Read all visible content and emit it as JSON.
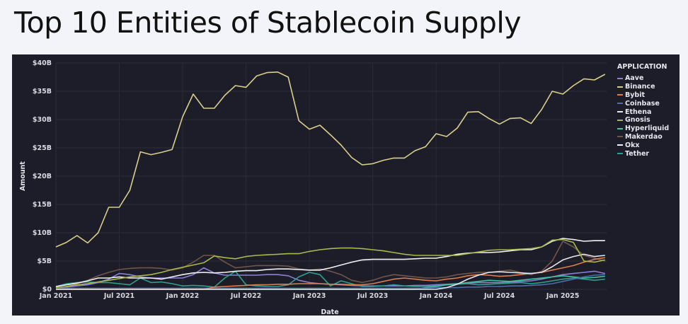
{
  "page_title": "Top 10 Entities of Stablecoin Supply",
  "chart_data": {
    "type": "line",
    "title": "Top 10 Entities of Stablecoin Supply",
    "xlabel": "Date",
    "ylabel": "Amount",
    "x_start": "Jan 2021",
    "x_interval": "month",
    "x_ticks": [
      "Jan 2021",
      "Jul 2021",
      "Jan 2022",
      "Jul 2022",
      "Jan 2023",
      "Jul 2023",
      "Jan 2024",
      "Jul 2024",
      "Jan 2025"
    ],
    "y_ticks": [
      "$0",
      "$5B",
      "$10B",
      "$15B",
      "$20B",
      "$25B",
      "$30B",
      "$35B",
      "$40B"
    ],
    "ylim": [
      0,
      40
    ],
    "y_unit": "B USD",
    "grid": true,
    "legend_title": "APPLICATION",
    "legend_position": "right",
    "series": [
      {
        "name": "Aave",
        "color": "#8a80d8",
        "values": [
          0.3,
          0.4,
          0.6,
          0.8,
          1.2,
          1.8,
          2.8,
          2.6,
          2.2,
          2,
          2,
          2,
          2,
          2.6,
          3.8,
          2.9,
          2.5,
          2.5,
          2.5,
          2.5,
          2.6,
          2.6,
          2.4,
          1.6,
          1.2,
          1,
          0.9,
          0.8,
          0.7,
          0.6,
          0.6,
          0.6,
          0.6,
          0.6,
          0.7,
          0.7,
          0.8,
          0.9,
          1,
          1.1,
          1.2,
          1.2,
          1.2,
          1.3,
          1.4,
          1.5,
          1.8,
          2.2,
          2.6,
          2.8,
          3,
          3.2,
          2.8
        ]
      },
      {
        "name": "Binance",
        "color": "#d8cf8a",
        "values": [
          7.5,
          8.3,
          9.5,
          8.2,
          10,
          14.5,
          14.5,
          17.5,
          24.3,
          23.8,
          24.2,
          24.7,
          30.5,
          34.5,
          32,
          32,
          34.3,
          36,
          35.7,
          37.7,
          38.3,
          38.4,
          37.5,
          29.8,
          28.3,
          29,
          27.3,
          25.5,
          23.3,
          22,
          22.2,
          22.8,
          23.2,
          23.2,
          24.5,
          25.2,
          27.5,
          27,
          28.5,
          31.3,
          31.4,
          30.2,
          29.2,
          30.2,
          30.3,
          29.3,
          31.8,
          35,
          34.5,
          36,
          37.2,
          37,
          38
        ]
      },
      {
        "name": "Bybit",
        "color": "#e07b4a",
        "values": [
          0,
          0,
          0,
          0,
          0,
          0,
          0,
          0,
          0,
          0,
          0,
          0,
          0,
          0,
          0,
          0.4,
          0.5,
          0.6,
          0.7,
          0.8,
          0.8,
          0.9,
          0.9,
          1,
          1,
          1,
          0.9,
          0.9,
          0.8,
          0.8,
          1,
          1.4,
          1.8,
          2,
          1.8,
          1.6,
          1.5,
          1.8,
          2,
          2.4,
          2.6,
          2.5,
          2.3,
          2.4,
          2.6,
          2.8,
          3,
          3.4,
          3.8,
          4.2,
          4.8,
          5.3,
          5.6
        ]
      },
      {
        "name": "Coinbase",
        "color": "#4a6ea8",
        "values": [
          0.2,
          0.2,
          0.2,
          0.2,
          0.2,
          0.2,
          0.2,
          0.2,
          0.2,
          0.2,
          0.2,
          0.2,
          0.2,
          0.2,
          0.2,
          0.2,
          0.2,
          0.2,
          0.2,
          0.2,
          0.2,
          0.2,
          0.2,
          0.2,
          0.2,
          0.2,
          0.2,
          0.2,
          0.2,
          0.2,
          0.2,
          0.2,
          0.2,
          0.2,
          0.2,
          0.2,
          0.3,
          0.3,
          0.3,
          0.4,
          0.4,
          0.5,
          0.5,
          0.6,
          0.6,
          0.7,
          0.8,
          1,
          1.4,
          1.8,
          2.2,
          2.5,
          2.6
        ]
      },
      {
        "name": "Ethena",
        "color": "#e8e8ee",
        "values": [
          0,
          0,
          0,
          0,
          0,
          0,
          0,
          0,
          0,
          0,
          0,
          0,
          0,
          0,
          0,
          0,
          0,
          0,
          0,
          0,
          0,
          0,
          0,
          0,
          0,
          0,
          0,
          0,
          0,
          0,
          0,
          0,
          0,
          0,
          0,
          0,
          0,
          0.3,
          0.9,
          1.8,
          2.5,
          3,
          3.1,
          3,
          2.9,
          2.8,
          3,
          4,
          5.2,
          5.8,
          6.2,
          5.8,
          6
        ]
      },
      {
        "name": "Gnosis",
        "color": "#a8b84a",
        "values": [
          0.3,
          0.5,
          0.8,
          1,
          1.3,
          1.6,
          1.9,
          2.2,
          2.4,
          2.6,
          3,
          3.5,
          3.9,
          4.3,
          4.7,
          5.9,
          5.6,
          5.4,
          5.8,
          6,
          6.1,
          6.2,
          6.3,
          6.3,
          6.7,
          7,
          7.2,
          7.3,
          7.3,
          7.2,
          7,
          6.8,
          6.5,
          6.2,
          6,
          6,
          6,
          6,
          6,
          6.3,
          6.6,
          6.9,
          7,
          7,
          7.1,
          7.2,
          7.5,
          8.7,
          8.8,
          8.3,
          5,
          4.8,
          5.2
        ]
      },
      {
        "name": "Hyperliquid",
        "color": "#3cc49a",
        "values": [
          0,
          0,
          0,
          0,
          0,
          0,
          0,
          0,
          0,
          0,
          0,
          0,
          0,
          0,
          0,
          0,
          0,
          0,
          0,
          0,
          0,
          0,
          0,
          0,
          0,
          0,
          0,
          0,
          0,
          0,
          0,
          0,
          0,
          0,
          0,
          0.3,
          0.5,
          0.8,
          1,
          1.2,
          1.4,
          1.6,
          1.5,
          1.4,
          1.6,
          1.8,
          2,
          2.2,
          2.4,
          2.2,
          2,
          2.1,
          2.3
        ]
      },
      {
        "name": "Makerdao",
        "color": "#6e5648",
        "values": [
          0.2,
          0.5,
          1,
          1.6,
          2.4,
          3,
          3.5,
          3.7,
          3.8,
          3.8,
          3.7,
          3.4,
          3.8,
          4.8,
          6,
          6,
          4.8,
          3.8,
          4,
          4.2,
          4.2,
          4.2,
          4.1,
          3.6,
          3.4,
          3.6,
          3.2,
          2.6,
          1.6,
          1.2,
          1.6,
          2.2,
          2.6,
          2.4,
          2.2,
          2,
          2,
          2.2,
          2.6,
          2.8,
          3,
          3,
          3.2,
          3.4,
          3,
          2.6,
          3.2,
          5,
          8.5,
          7.5,
          6,
          5.5,
          5
        ]
      },
      {
        "name": "Okx",
        "color": "#f2f2f6",
        "values": [
          0.5,
          0.8,
          1.1,
          1.5,
          2,
          2,
          2.2,
          2,
          2,
          2,
          1.8,
          2.2,
          2.6,
          2.9,
          3,
          2.9,
          3,
          3.2,
          3.3,
          3.3,
          3.5,
          3.6,
          3.6,
          3.5,
          3.4,
          3.4,
          3.8,
          4.3,
          4.8,
          5.2,
          5.3,
          5.3,
          5.3,
          5.3,
          5.4,
          5.5,
          5.5,
          5.8,
          6.2,
          6.4,
          6.5,
          6.5,
          6.6,
          6.8,
          7,
          7,
          7.5,
          8.5,
          9,
          8.8,
          8.5,
          8.6,
          8.6
        ]
      },
      {
        "name": "Tether",
        "color": "#2f9e8e",
        "values": [
          0.5,
          1,
          1.2,
          1.3,
          1.2,
          1.2,
          1,
          0.8,
          2,
          1.2,
          1.3,
          1,
          0.6,
          0.7,
          0.6,
          0.4,
          2,
          3.2,
          0.8,
          0.6,
          0.5,
          0.5,
          0.8,
          2.2,
          3,
          2.6,
          0.6,
          1.5,
          1,
          0.5,
          0.5,
          0.6,
          0.8,
          0.6,
          0.5,
          0.5,
          0.6,
          0.8,
          0.9,
          1,
          0.8,
          0.9,
          1,
          1.1,
          1.2,
          1,
          1.2,
          1.5,
          1.8,
          2,
          1.8,
          1.6,
          1.8
        ]
      }
    ]
  }
}
